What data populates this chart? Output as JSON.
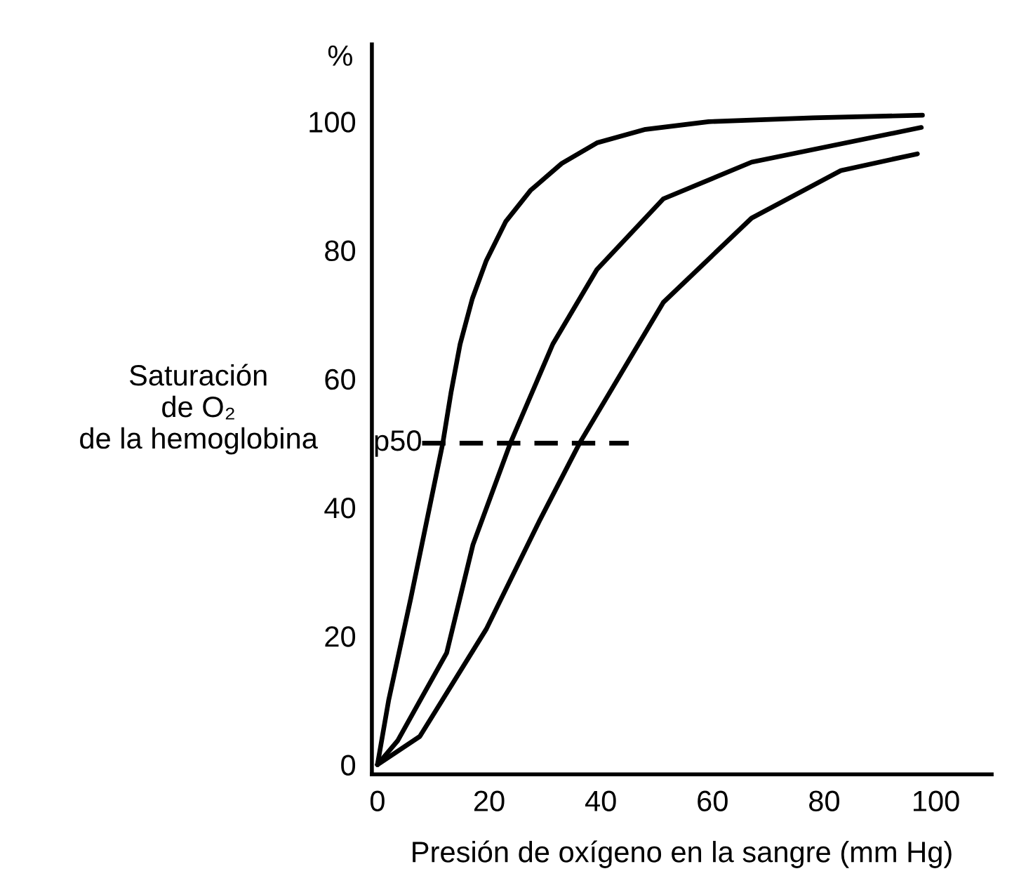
{
  "chart_data": {
    "type": "line",
    "xlabel": "Presión de oxígeno en la sangre (mm Hg)",
    "ylabel": "Saturación\nde O₂\nde la hemoglobina",
    "xlim": [
      -1,
      110
    ],
    "ylim": [
      -1.5,
      112
    ],
    "xticks": [
      0,
      20,
      40,
      60,
      80,
      100
    ],
    "yticks": [
      0,
      20,
      40,
      60,
      80,
      100
    ],
    "grid": false,
    "legend": false,
    "marker": "none",
    "series": [
      {
        "color": "#000000",
        "x": [
          0,
          2,
          6,
          11.7,
          13.2,
          14.8,
          17,
          19.5,
          23,
          27.4,
          33,
          39.3,
          48,
          59.3,
          78,
          97.6
        ],
        "values": [
          0,
          10,
          26,
          50,
          58,
          65.4,
          72.5,
          78.4,
          84.5,
          89.3,
          93.5,
          96.7,
          98.8,
          100,
          100.6,
          101
        ]
      },
      {
        "color": "#000000",
        "x": [
          0,
          3.6,
          12.4,
          17.1,
          23.8,
          31.4,
          39.3,
          51.2,
          67,
          97.4
        ],
        "values": [
          0,
          3.7,
          17.4,
          34.2,
          50,
          65.4,
          77,
          88,
          93.7,
          99.1
        ]
      },
      {
        "color": "#000000",
        "x": [
          0,
          7.6,
          19.5,
          29,
          36.2,
          51.2,
          67,
          83,
          96.7
        ],
        "values": [
          0,
          4.4,
          21.1,
          37.9,
          50,
          71.9,
          85,
          92.4,
          95
        ]
      },
      {
        "color": "#000000",
        "line_style": "dashed",
        "x": [
          8,
          45
        ],
        "values": [
          50,
          50
        ]
      }
    ],
    "annotations": [
      "p50",
      "%"
    ]
  }
}
